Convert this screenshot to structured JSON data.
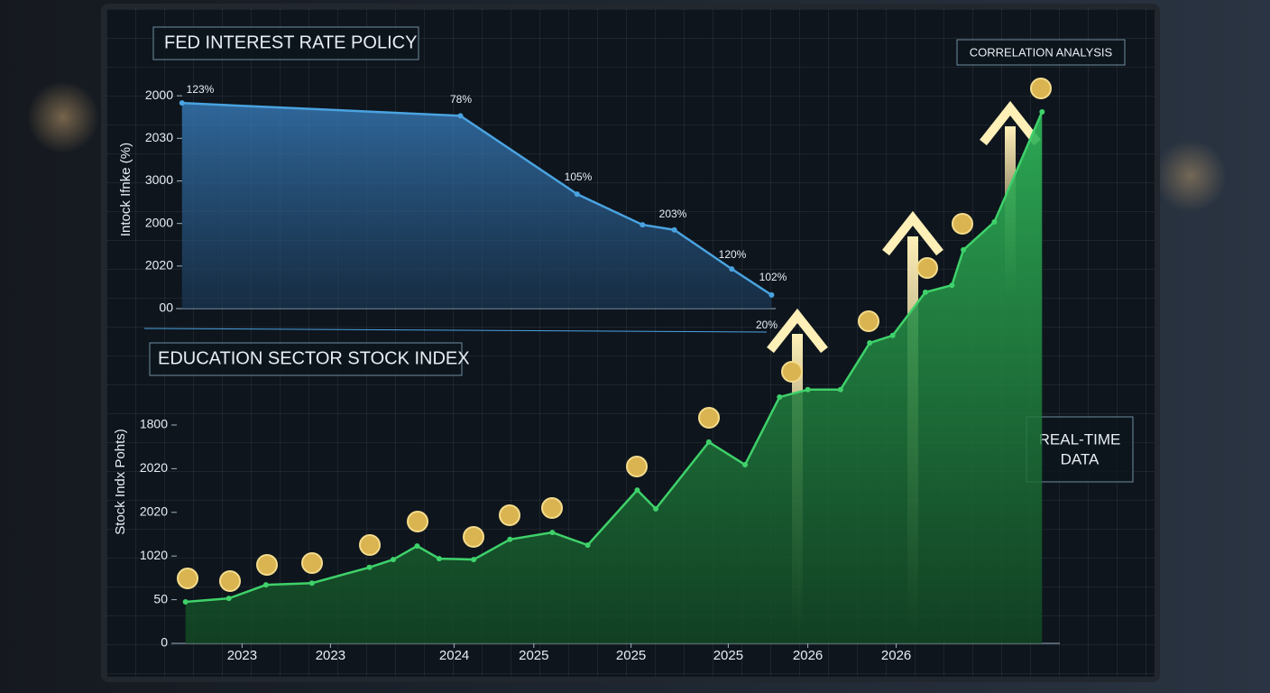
{
  "chart_data": [
    {
      "type": "area",
      "title": "FED INTEREST RATE POLICY",
      "y_label": "Intock Ifnke (%)",
      "color": "#4aa3e0",
      "x": [
        0.12,
        3.27,
        4.59,
        5.33,
        5.69,
        6.34,
        6.79
      ],
      "values": [
        4.83,
        4.53,
        2.69,
        1.97,
        1.85,
        0.93,
        0.32
      ],
      "xlim": [
        0,
        10
      ],
      "ylim": [
        0,
        5.3
      ],
      "yticks": [
        {
          "value": 0,
          "label": "00"
        },
        {
          "value": 1,
          "label": "2020"
        },
        {
          "value": 2,
          "label": "2000"
        },
        {
          "value": 3,
          "label": "3000"
        },
        {
          "value": 4,
          "label": "2030"
        },
        {
          "value": 5,
          "label": "2000"
        }
      ],
      "annotations": [
        "123%",
        "78%",
        "105%",
        "203%",
        "120%",
        "102%",
        "20%"
      ]
    },
    {
      "type": "area",
      "title": "EDUCATION SECTOR STOCK INDEX",
      "y_label": "Stock Indx Pohts)",
      "color": "#3fd16a",
      "x": [
        0.16,
        0.65,
        1.07,
        1.59,
        2.24,
        2.51,
        2.78,
        3.03,
        3.42,
        3.83,
        4.31,
        4.71,
        5.27,
        5.48,
        6.08,
        6.49,
        6.88,
        7.2,
        7.57,
        7.9,
        8.16,
        8.53,
        8.83,
        8.96,
        9.31,
        9.85
      ],
      "values": [
        0.95,
        1.03,
        1.34,
        1.38,
        1.74,
        1.92,
        2.23,
        1.94,
        1.92,
        2.38,
        2.54,
        2.25,
        3.51,
        3.08,
        4.61,
        4.09,
        5.64,
        5.81,
        5.81,
        6.88,
        7.05,
        8.04,
        8.2,
        9.01,
        9.65,
        12.17
      ],
      "xlim": [
        0,
        10
      ],
      "ylim": [
        0,
        12.5
      ],
      "yticks": [
        0,
        {
          "value": 1,
          "label": "50"
        },
        {
          "value": 2,
          "label": "1020"
        },
        {
          "value": 3,
          "label": "2020"
        },
        {
          "value": 4,
          "label": "2020"
        },
        {
          "value": 5,
          "label": "1800"
        }
      ],
      "xticks": [
        {
          "value": 0.8,
          "label": "2023"
        },
        {
          "value": 1.8,
          "label": "2023"
        },
        {
          "value": 3.2,
          "label": "2024"
        },
        {
          "value": 4.1,
          "label": "2025"
        },
        {
          "value": 5.2,
          "label": "2025"
        },
        {
          "value": 6.3,
          "label": "2025"
        },
        {
          "value": 7.2,
          "label": "2026"
        },
        {
          "value": 8.2,
          "label": "2026"
        }
      ]
    }
  ],
  "panels": {
    "correlation": "CORRELATION ANALYSIS",
    "realtime": [
      "REAL-TIME",
      "DATA"
    ]
  }
}
